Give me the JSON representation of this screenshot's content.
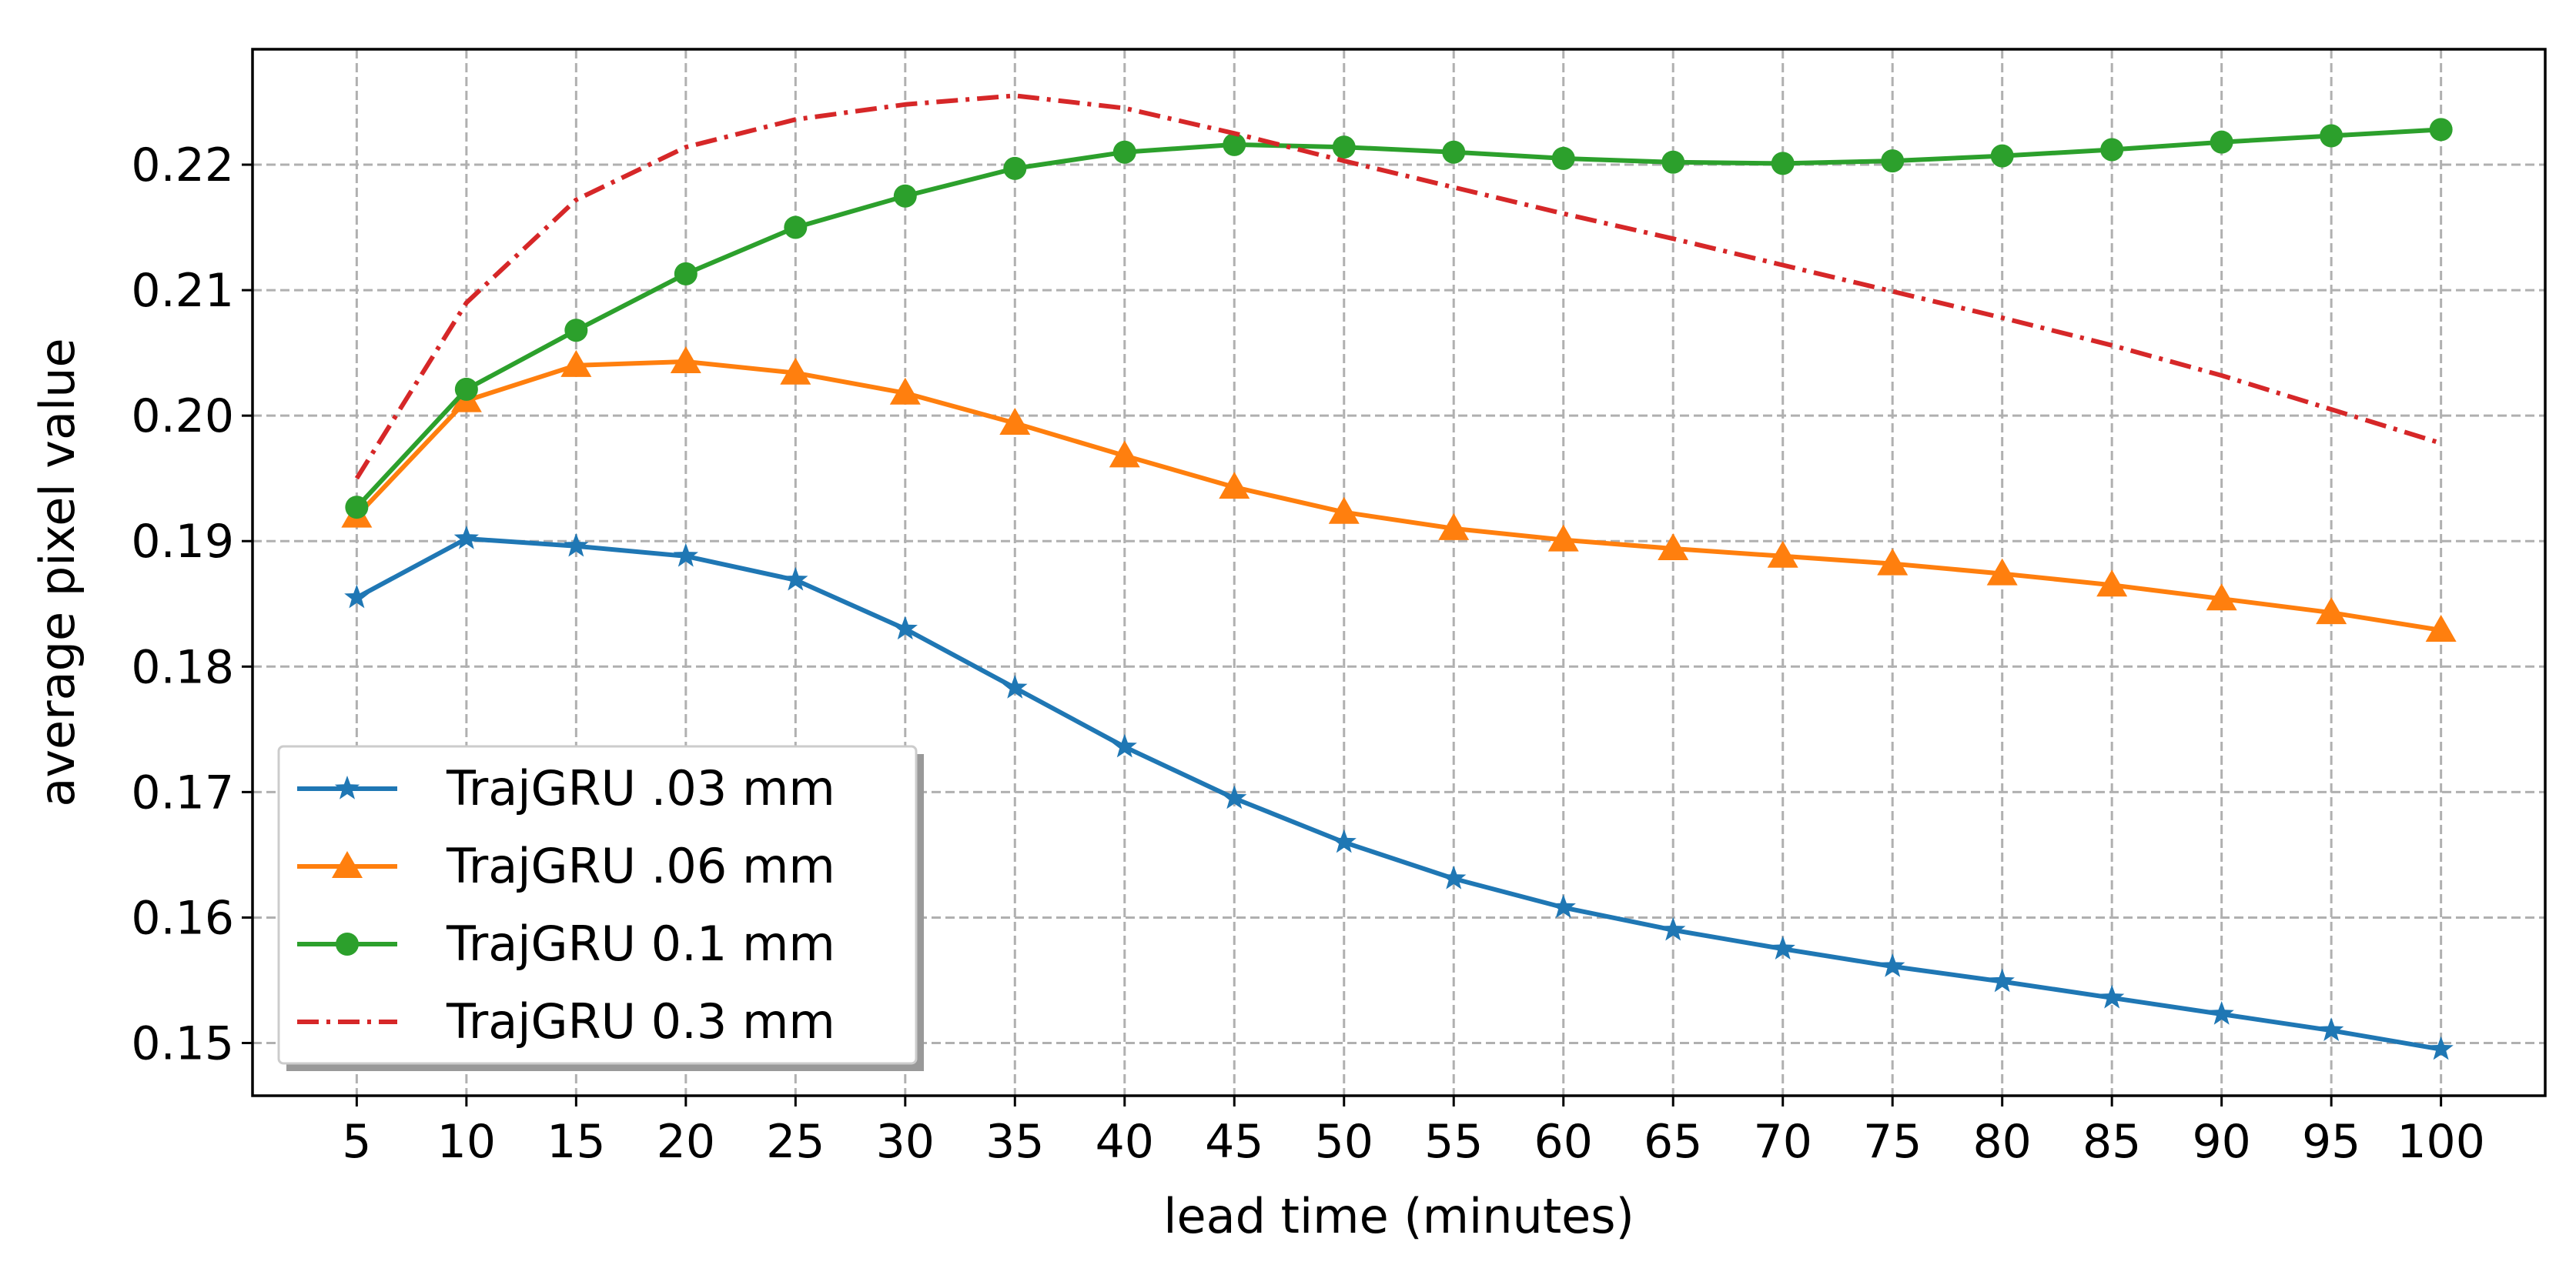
{
  "chart_data": {
    "type": "line",
    "title": "",
    "xlabel": "lead time (minutes)",
    "ylabel": "average pixel value",
    "x": [
      5,
      10,
      15,
      20,
      25,
      30,
      35,
      40,
      45,
      50,
      55,
      60,
      65,
      70,
      75,
      80,
      85,
      90,
      95,
      100
    ],
    "x_tick_labels": [
      "5",
      "10",
      "15",
      "20",
      "25",
      "30",
      "35",
      "40",
      "45",
      "50",
      "55",
      "60",
      "65",
      "70",
      "75",
      "80",
      "85",
      "90",
      "95",
      "100"
    ],
    "yticks": [
      0.15,
      0.16,
      0.17,
      0.18,
      0.19,
      0.2,
      0.21,
      0.22
    ],
    "y_tick_labels": [
      "0.15",
      "0.16",
      "0.17",
      "0.18",
      "0.19",
      "0.20",
      "0.21",
      "0.22"
    ],
    "xlim": [
      0.25,
      104.75
    ],
    "ylim": [
      0.1458,
      0.2292
    ],
    "grid": true,
    "legend_position": "lower-left",
    "series": [
      {
        "name": "TrajGRU .03 mm",
        "color": "#1f77b4",
        "marker": "star",
        "linestyle": "solid",
        "values": [
          0.1855,
          0.1902,
          0.1896,
          0.1888,
          0.1869,
          0.183,
          0.1783,
          0.1736,
          0.1695,
          0.166,
          0.1631,
          0.1608,
          0.159,
          0.1575,
          0.1561,
          0.1549,
          0.1536,
          0.1523,
          0.151,
          0.1495
        ]
      },
      {
        "name": "TrajGRU .06 mm",
        "color": "#ff7f0e",
        "marker": "triangle",
        "linestyle": "solid",
        "values": [
          0.192,
          0.2012,
          0.204,
          0.2043,
          0.2034,
          0.2018,
          0.1994,
          0.1968,
          0.1943,
          0.1923,
          0.191,
          0.1901,
          0.1894,
          0.1888,
          0.1882,
          0.1874,
          0.1865,
          0.1854,
          0.1843,
          0.1829
        ]
      },
      {
        "name": "TrajGRU 0.1 mm",
        "color": "#2ca02c",
        "marker": "circle",
        "linestyle": "solid",
        "values": [
          0.1927,
          0.2021,
          0.2068,
          0.2113,
          0.215,
          0.2175,
          0.2197,
          0.221,
          0.2216,
          0.2214,
          0.221,
          0.2205,
          0.2202,
          0.2201,
          0.2203,
          0.2207,
          0.2212,
          0.2218,
          0.2223,
          0.2228
        ]
      },
      {
        "name": "TrajGRU 0.3 mm",
        "color": "#d62728",
        "marker": "none",
        "linestyle": "dashdot",
        "values": [
          0.195,
          0.209,
          0.2172,
          0.2214,
          0.2236,
          0.2248,
          0.2255,
          0.2245,
          0.2225,
          0.2203,
          0.2182,
          0.2161,
          0.2141,
          0.212,
          0.2099,
          0.2078,
          0.2056,
          0.2032,
          0.2005,
          0.1978
        ]
      }
    ]
  }
}
